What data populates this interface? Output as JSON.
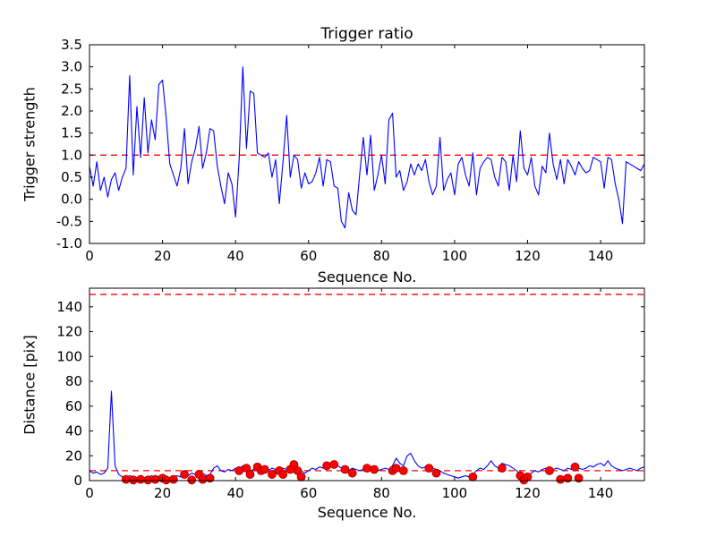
{
  "colors": {
    "line": "#0000ff",
    "threshold": "#ff0000",
    "marker_face": "#ff0000",
    "marker_edge": "#990000",
    "axes": "#000000",
    "background": "#ffffff"
  },
  "chart_data": [
    {
      "id": "trigger-strength",
      "type": "line",
      "title": "Trigger ratio",
      "xlabel": "Sequence No.",
      "ylabel": "Trigger strength",
      "xlim": [
        0,
        152
      ],
      "ylim": [
        -1.0,
        3.5
      ],
      "xticks": [
        0,
        20,
        40,
        60,
        80,
        100,
        120,
        140
      ],
      "xtick_labels": [
        "0",
        "20",
        "40",
        "60",
        "80",
        "100",
        "120",
        "140"
      ],
      "yticks": [
        -1.0,
        -0.5,
        0.0,
        0.5,
        1.0,
        1.5,
        2.0,
        2.5,
        3.0,
        3.5
      ],
      "ytick_labels": [
        "-1.0",
        "-0.5",
        "0.0",
        "0.5",
        "1.0",
        "1.5",
        "2.0",
        "2.5",
        "3.0",
        "3.5"
      ],
      "hlines": [
        1.0
      ],
      "grid": false,
      "x_start": 0,
      "x_step": 1,
      "y": [
        0.75,
        0.3,
        0.85,
        0.2,
        0.5,
        0.05,
        0.45,
        0.6,
        0.2,
        0.5,
        0.7,
        2.8,
        0.55,
        2.1,
        0.95,
        2.3,
        1.05,
        1.8,
        1.35,
        2.6,
        2.7,
        1.85,
        0.8,
        0.55,
        0.3,
        0.7,
        1.6,
        0.35,
        0.85,
        1.15,
        1.65,
        0.7,
        1.05,
        1.6,
        1.55,
        0.75,
        0.3,
        -0.1,
        0.6,
        0.35,
        -0.4,
        0.9,
        3.0,
        1.15,
        2.45,
        2.4,
        1.05,
        1.0,
        0.95,
        1.05,
        0.5,
        0.9,
        -0.1,
        0.85,
        1.9,
        0.5,
        1.0,
        0.9,
        0.25,
        0.6,
        0.35,
        0.4,
        0.6,
        0.95,
        0.3,
        0.9,
        0.85,
        0.3,
        0.25,
        -0.5,
        -0.65,
        0.15,
        -0.25,
        -0.35,
        0.55,
        1.4,
        0.55,
        1.45,
        0.2,
        0.55,
        1.0,
        0.35,
        1.8,
        1.95,
        0.5,
        0.65,
        0.2,
        0.4,
        0.8,
        0.55,
        0.8,
        0.65,
        0.9,
        0.4,
        0.1,
        0.3,
        1.4,
        0.2,
        0.45,
        0.6,
        0.1,
        0.8,
        0.95,
        0.55,
        0.3,
        1.05,
        0.1,
        0.7,
        0.85,
        0.95,
        0.9,
        0.5,
        0.3,
        0.95,
        0.85,
        0.2,
        1.0,
        0.4,
        1.55,
        0.7,
        0.55,
        0.95,
        0.3,
        0.1,
        0.75,
        0.6,
        1.5,
        0.8,
        0.45,
        0.9,
        0.35,
        0.9,
        0.75,
        0.55,
        0.85,
        0.7,
        0.6,
        0.65,
        0.95,
        0.9,
        0.85,
        0.25,
        0.95,
        0.9,
        0.35,
        0.0,
        -0.55,
        0.85,
        0.8,
        0.75,
        0.7,
        0.65,
        0.8
      ]
    },
    {
      "id": "distance",
      "type": "line+scatter",
      "title": "",
      "xlabel": "Sequence No.",
      "ylabel": "Distance [pix]",
      "xlim": [
        0,
        152
      ],
      "ylim": [
        0,
        155
      ],
      "xticks": [
        0,
        20,
        40,
        60,
        80,
        100,
        120,
        140
      ],
      "xtick_labels": [
        "0",
        "20",
        "40",
        "60",
        "80",
        "100",
        "120",
        "140"
      ],
      "yticks": [
        0,
        20,
        40,
        60,
        80,
        100,
        120,
        140
      ],
      "ytick_labels": [
        "0",
        "20",
        "40",
        "60",
        "80",
        "100",
        "120",
        "140"
      ],
      "hlines": [
        150,
        8
      ],
      "grid": false,
      "x_start": 0,
      "x_step": 1,
      "y": [
        8,
        6,
        7,
        5,
        6,
        10,
        72,
        12,
        5,
        3,
        2,
        4,
        3,
        2,
        3,
        2,
        3,
        4,
        2,
        3,
        4,
        3,
        2,
        3,
        4,
        3,
        5,
        4,
        6,
        5,
        8,
        6,
        4,
        5,
        10,
        12,
        8,
        7,
        9,
        8,
        10,
        9,
        12,
        10,
        8,
        9,
        11,
        10,
        9,
        8,
        10,
        9,
        8,
        10,
        9,
        12,
        15,
        10,
        8,
        6,
        8,
        10,
        9,
        11,
        10,
        12,
        13,
        11,
        12,
        10,
        9,
        8,
        10,
        9,
        8,
        9,
        10,
        11,
        9,
        8,
        9,
        10,
        9,
        12,
        18,
        14,
        12,
        20,
        22,
        16,
        12,
        10,
        11,
        12,
        10,
        9,
        8,
        6,
        5,
        4,
        3,
        2,
        3,
        4,
        3,
        5,
        8,
        10,
        9,
        12,
        16,
        12,
        10,
        14,
        13,
        12,
        10,
        8,
        5,
        3,
        4,
        6,
        8,
        7,
        9,
        10,
        8,
        9,
        10,
        9,
        8,
        10,
        9,
        11,
        10,
        9,
        10,
        12,
        11,
        13,
        14,
        12,
        16,
        12,
        10,
        9,
        8,
        9,
        10,
        9,
        8,
        10,
        11
      ],
      "scatter": [
        [
          10,
          1
        ],
        [
          12,
          0.5
        ],
        [
          14,
          1
        ],
        [
          16,
          0.5
        ],
        [
          18,
          1
        ],
        [
          20,
          2
        ],
        [
          21,
          0.5
        ],
        [
          23,
          1
        ],
        [
          26,
          5
        ],
        [
          28,
          0.5
        ],
        [
          30,
          5
        ],
        [
          31,
          1
        ],
        [
          33,
          2
        ],
        [
          41,
          8
        ],
        [
          43,
          10
        ],
        [
          44,
          5
        ],
        [
          46,
          11
        ],
        [
          47,
          8
        ],
        [
          48,
          9
        ],
        [
          50,
          5
        ],
        [
          52,
          8
        ],
        [
          53,
          5
        ],
        [
          55,
          9
        ],
        [
          56,
          13
        ],
        [
          57,
          8
        ],
        [
          58,
          3
        ],
        [
          65,
          12
        ],
        [
          67,
          13
        ],
        [
          70,
          9
        ],
        [
          72,
          6
        ],
        [
          76,
          10
        ],
        [
          78,
          9
        ],
        [
          83,
          8
        ],
        [
          84,
          10
        ],
        [
          86,
          8
        ],
        [
          93,
          10
        ],
        [
          95,
          6
        ],
        [
          105,
          3
        ],
        [
          113,
          10
        ],
        [
          118,
          4
        ],
        [
          119,
          0.5
        ],
        [
          120,
          3
        ],
        [
          126,
          8
        ],
        [
          129,
          1
        ],
        [
          131,
          2
        ],
        [
          133,
          11
        ],
        [
          134,
          2
        ]
      ]
    }
  ]
}
